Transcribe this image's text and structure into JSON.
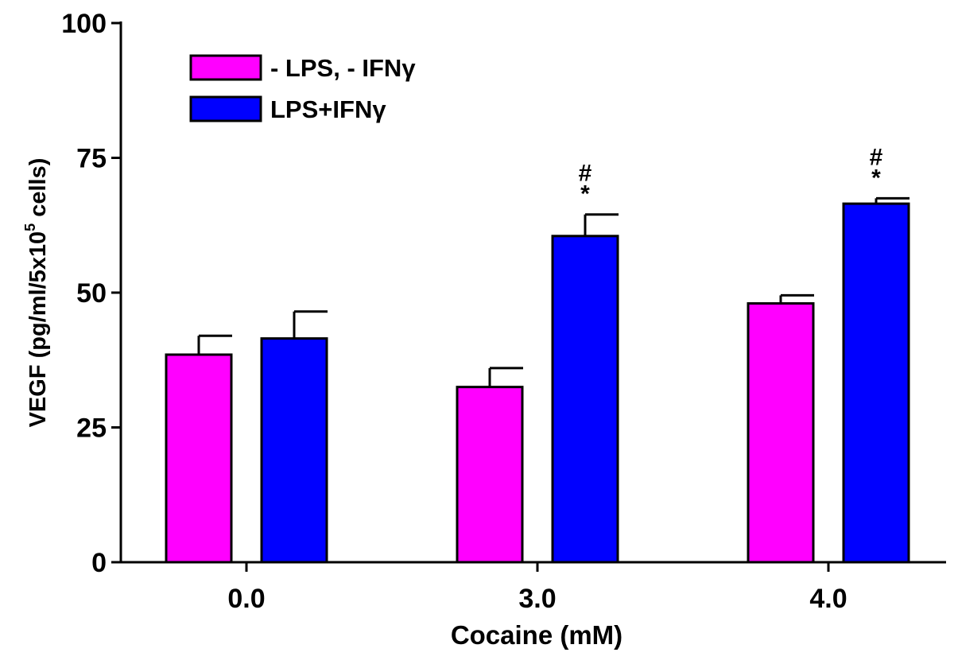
{
  "chart_data": {
    "type": "bar",
    "xlabel": "Cocaine (mM)",
    "ylabel_main": "VEGF (pg/ml/5x10",
    "ylabel_sup": "5",
    "ylabel_end": " cells)",
    "ylim": [
      0,
      100
    ],
    "yticks": [
      "0",
      "25",
      "50",
      "75",
      "100"
    ],
    "categories": [
      "0.0",
      "3.0",
      "4.0"
    ],
    "legend_placement": "top-left",
    "series": [
      {
        "name": "- LPS, - IFNγ",
        "color": "#ff00ff",
        "values": [
          38.5,
          32.5,
          48
        ],
        "errors": [
          3.5,
          3.5,
          1.5
        ],
        "annotations": [
          [],
          [],
          []
        ]
      },
      {
        "name": "LPS+IFNγ",
        "color": "#0000ff",
        "values": [
          41.5,
          60.5,
          66.5
        ],
        "errors": [
          5,
          4,
          1
        ],
        "annotations": [
          [],
          [
            "#",
            "*"
          ],
          [
            "#",
            "*"
          ]
        ]
      }
    ],
    "grid": false
  }
}
